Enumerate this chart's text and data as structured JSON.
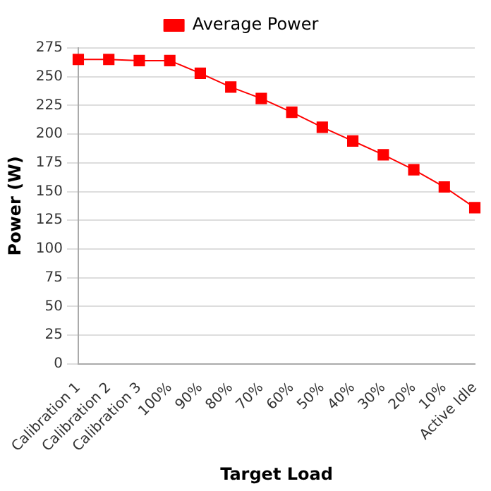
{
  "chart_data": {
    "type": "line",
    "xlabel": "Target Load",
    "ylabel": "Power (W)",
    "categories": [
      "Calibration 1",
      "Calibration 2",
      "Calibration 3",
      "100%",
      "90%",
      "80%",
      "70%",
      "60%",
      "50%",
      "40%",
      "30%",
      "20%",
      "10%",
      "Active Idle"
    ],
    "series": [
      {
        "name": "Average Power",
        "color": "#ff0000",
        "values": [
          265,
          265,
          264,
          264,
          253,
          241,
          231,
          219,
          206,
          194,
          182,
          169,
          154,
          136
        ]
      }
    ],
    "ylim": [
      0,
      275
    ],
    "yticks": [
      0,
      25,
      50,
      75,
      100,
      125,
      150,
      175,
      200,
      225,
      250,
      275
    ],
    "grid": "y",
    "legend": "top",
    "marker": "square",
    "line_style": "solid"
  }
}
